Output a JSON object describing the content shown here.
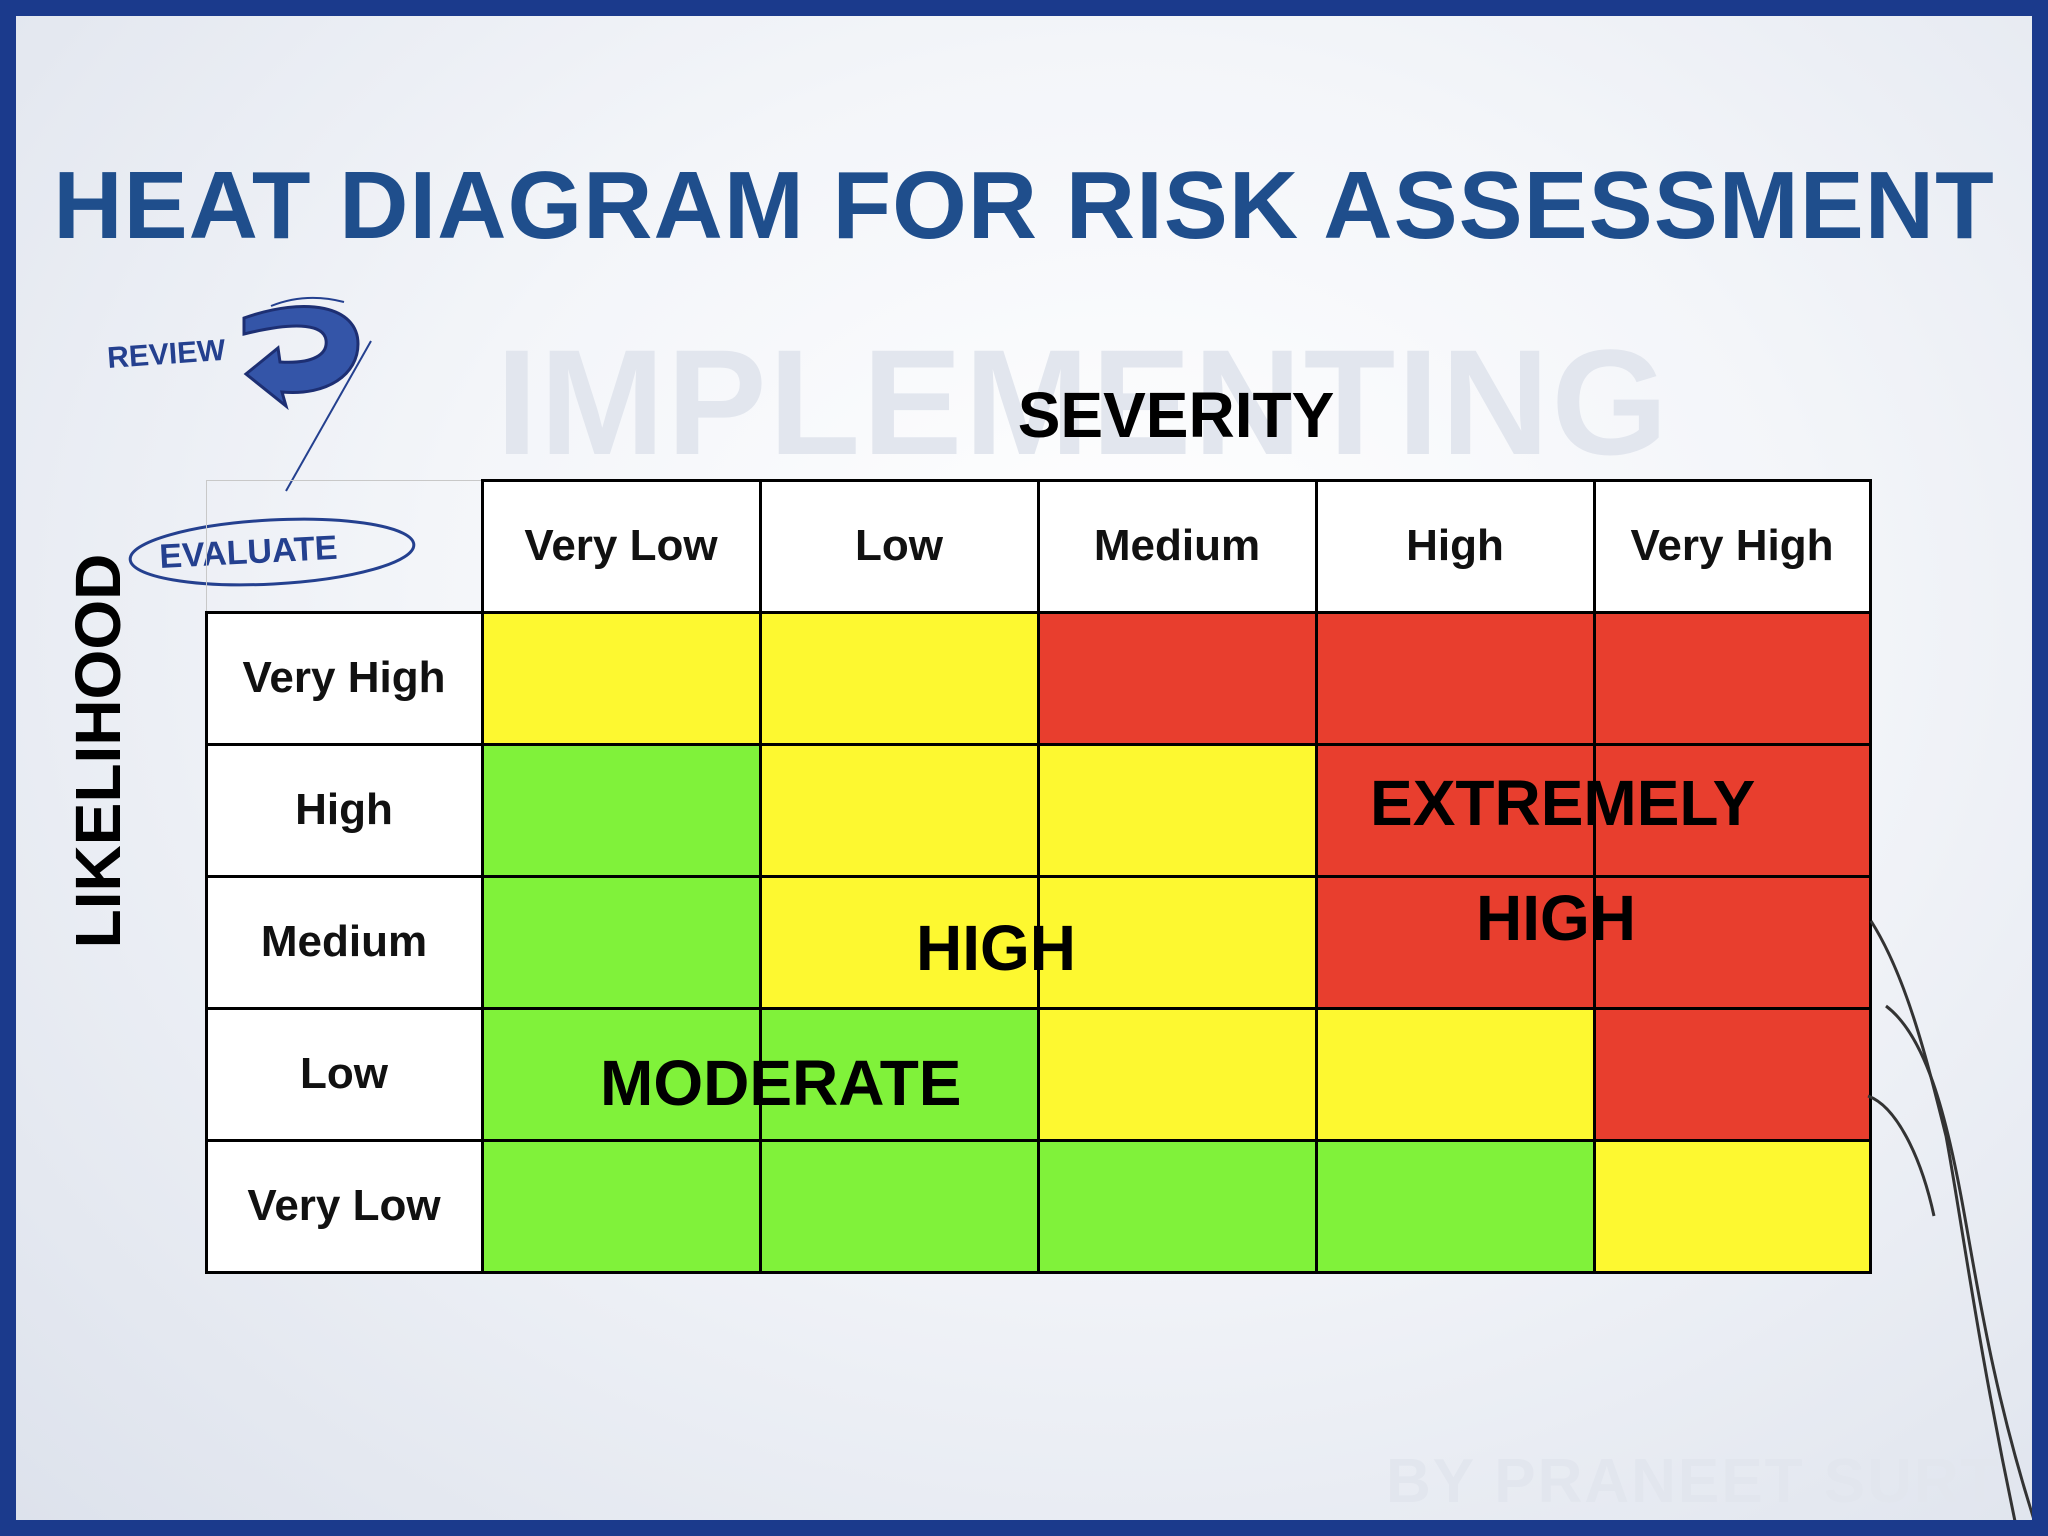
{
  "slide": {
    "title": "HEAT DIAGRAM FOR RISK ASSESSMENT",
    "watermark_main": "IMPLEMENTING",
    "watermark_byline": "BY PRANEET SURTI",
    "sketch_review": "REVIEW",
    "sketch_evaluate": "EVALUATE"
  },
  "chart_data": {
    "type": "heatmap",
    "xlabel": "SEVERITY",
    "ylabel": "LIKELIHOOD",
    "columns": [
      "Very Low",
      "Low",
      "Medium",
      "High",
      "Very High"
    ],
    "rows": [
      "Very High",
      "High",
      "Medium",
      "Low",
      "Very Low"
    ],
    "levels": {
      "G": {
        "name": "MODERATE",
        "color": "#80f23a"
      },
      "Y": {
        "name": "HIGH",
        "color": "#fdf830"
      },
      "R": {
        "name": "EXTREMELY HIGH",
        "color": "#e83e2e"
      }
    },
    "cells": [
      [
        "Y",
        "Y",
        "R",
        "R",
        "R"
      ],
      [
        "G",
        "Y",
        "Y",
        "R",
        "R"
      ],
      [
        "G",
        "Y",
        "Y",
        "R",
        "R"
      ],
      [
        "G",
        "G",
        "Y",
        "Y",
        "R"
      ],
      [
        "G",
        "G",
        "G",
        "G",
        "Y"
      ]
    ],
    "zone_labels": {
      "moderate": "MODERATE",
      "high": "HIGH",
      "extreme_line1": "EXTREMELY",
      "extreme_line2": "HIGH"
    }
  },
  "colors": {
    "border": "#1b3a8c",
    "title": "#1f4e8c",
    "sketch_ink": "#24408f"
  }
}
